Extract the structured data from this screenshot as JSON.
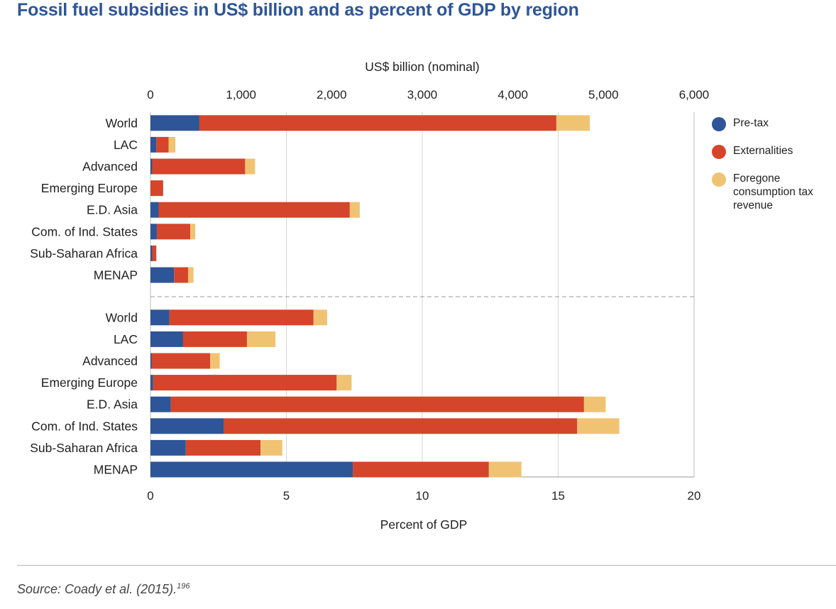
{
  "title": "Fossil fuel subsidies in US$ billion and as percent of GDP by region",
  "source": {
    "text": "Source: Coady et al. (2015).",
    "footnote": "196"
  },
  "chart_data": [
    {
      "type": "bar",
      "orientation": "horizontal",
      "stacked": true,
      "xlabel": "US$ billion (nominal)",
      "axis_position": "top",
      "xlim": [
        0,
        6000
      ],
      "xticks": [
        "0",
        "1,000",
        "2,000",
        "3,000",
        "4,000",
        "5,000",
        "6,000"
      ],
      "categories": [
        "World",
        "LAC",
        "Advanced",
        "Emerging Europe",
        "E.D. Asia",
        "Com. of Ind. States",
        "Sub-Saharan Africa",
        "MENAP"
      ],
      "series": [
        {
          "name": "Pre-tax",
          "color": "#2e5597",
          "values": [
            540,
            65,
            20,
            0,
            90,
            70,
            20,
            260
          ]
        },
        {
          "name": "Externalities",
          "color": "#d4452b",
          "values": [
            3940,
            135,
            1025,
            140,
            2110,
            370,
            45,
            155
          ]
        },
        {
          "name": "Foregone consumption tax revenue",
          "color": "#f0c373",
          "values": [
            370,
            75,
            110,
            0,
            110,
            55,
            0,
            60
          ]
        }
      ]
    },
    {
      "type": "bar",
      "orientation": "horizontal",
      "stacked": true,
      "xlabel": "Percent of GDP",
      "axis_position": "bottom",
      "xlim": [
        0,
        20
      ],
      "xticks": [
        "0",
        "5",
        "10",
        "15",
        "20"
      ],
      "categories": [
        "World",
        "LAC",
        "Advanced",
        "Emerging Europe",
        "E.D. Asia",
        "Com. of Ind. States",
        "Sub-Saharan Africa",
        "MENAP"
      ],
      "series": [
        {
          "name": "Pre-tax",
          "color": "#2e5597",
          "values": [
            0.7,
            1.2,
            0.05,
            0.1,
            0.75,
            2.7,
            1.3,
            7.45
          ]
        },
        {
          "name": "Externalities",
          "color": "#d4452b",
          "values": [
            5.3,
            2.35,
            2.15,
            6.75,
            15.2,
            13.0,
            2.75,
            5.0
          ]
        },
        {
          "name": "Foregone consumption tax revenue",
          "color": "#f0c373",
          "values": [
            0.5,
            1.05,
            0.35,
            0.55,
            0.8,
            1.55,
            0.8,
            1.2
          ]
        }
      ]
    }
  ],
  "legend": [
    {
      "label": "Pre-tax",
      "color": "#2e5597"
    },
    {
      "label": "Externalities",
      "color": "#d4452b"
    },
    {
      "label": "Foregone consumption tax revenue",
      "color": "#f0c373"
    }
  ]
}
